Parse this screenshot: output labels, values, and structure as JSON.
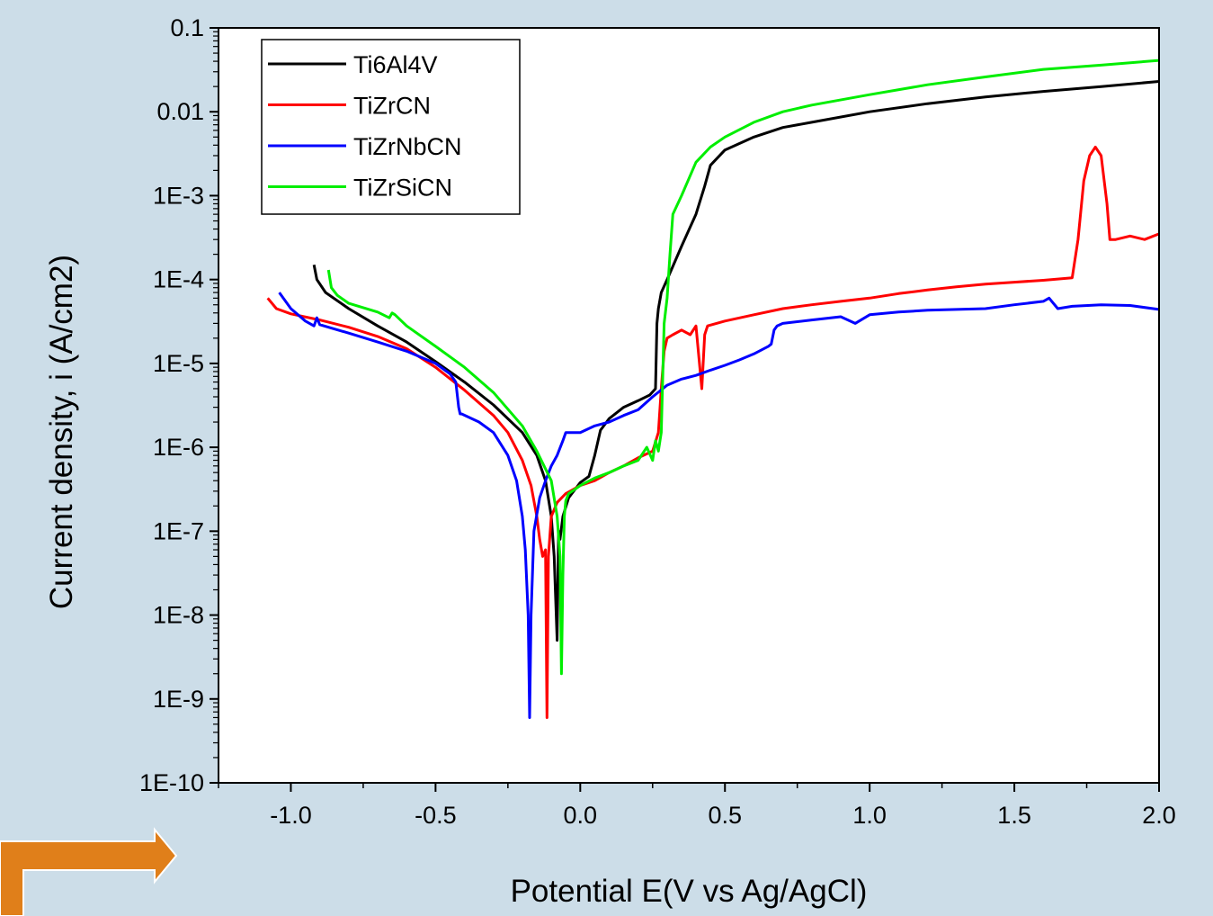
{
  "colors": {
    "background": "#ccdde8",
    "plot_background": "#ffffff",
    "arrow": "#e07f1a"
  },
  "decoration": {
    "arrow_icon": "bent-arrow-right-icon"
  },
  "chart_data": {
    "type": "line",
    "title": "",
    "xlabel": "Potential E(V vs Ag/AgCl)",
    "ylabel": "Current density, i (A/cm2)",
    "xlim": [
      -1.25,
      2.0
    ],
    "ylim": [
      1e-10,
      0.1
    ],
    "yscale": "log",
    "grid": false,
    "legend_position": "top-left",
    "x_ticks": [
      {
        "value": -1.0,
        "label": "-1.0"
      },
      {
        "value": -0.5,
        "label": "-0.5"
      },
      {
        "value": 0.0,
        "label": "0.0"
      },
      {
        "value": 0.5,
        "label": "0.5"
      },
      {
        "value": 1.0,
        "label": "1.0"
      },
      {
        "value": 1.5,
        "label": "1.5"
      },
      {
        "value": 2.0,
        "label": "2.0"
      }
    ],
    "y_ticks": [
      {
        "value": 1e-10,
        "label": "1E-10"
      },
      {
        "value": 1e-09,
        "label": "1E-9"
      },
      {
        "value": 1e-08,
        "label": "1E-8"
      },
      {
        "value": 1e-07,
        "label": "1E-7"
      },
      {
        "value": 1e-06,
        "label": "1E-6"
      },
      {
        "value": 1e-05,
        "label": "1E-5"
      },
      {
        "value": 0.0001,
        "label": "1E-4"
      },
      {
        "value": 0.001,
        "label": "1E-3"
      },
      {
        "value": 0.01,
        "label": "0.01"
      },
      {
        "value": 0.1,
        "label": "0.1"
      }
    ],
    "series": [
      {
        "name": "Ti6Al4V",
        "color": "#000000",
        "x": [
          -0.92,
          -0.91,
          -0.88,
          -0.8,
          -0.7,
          -0.6,
          -0.5,
          -0.4,
          -0.3,
          -0.2,
          -0.15,
          -0.12,
          -0.1,
          -0.09,
          -0.08,
          -0.075,
          -0.07,
          -0.06,
          -0.04,
          0.0,
          0.03,
          0.05,
          0.07,
          0.1,
          0.15,
          0.2,
          0.24,
          0.26,
          0.265,
          0.27,
          0.28,
          0.3,
          0.35,
          0.4,
          0.43,
          0.45,
          0.5,
          0.6,
          0.7,
          0.8,
          1.0,
          1.2,
          1.4,
          1.6,
          1.8,
          2.0
        ],
        "y": [
          0.00015,
          0.0001,
          7e-05,
          4.5e-05,
          2.8e-05,
          1.8e-05,
          1.05e-05,
          6e-06,
          3.2e-06,
          1.5e-06,
          8e-07,
          4e-07,
          1.5e-07,
          5e-08,
          5e-09,
          1e-07,
          8e-08,
          1.5e-07,
          2.5e-07,
          3.8e-07,
          4.5e-07,
          8e-07,
          1.6e-06,
          2.2e-06,
          3e-06,
          3.6e-06,
          4.2e-06,
          5e-06,
          3e-05,
          4.5e-05,
          7e-05,
          0.0001,
          0.00025,
          0.0006,
          0.0013,
          0.0023,
          0.0035,
          0.005,
          0.0065,
          0.0075,
          0.01,
          0.0125,
          0.015,
          0.0175,
          0.02,
          0.023
        ]
      },
      {
        "name": "TiZrCN",
        "color": "#ff0000",
        "x": [
          -1.08,
          -1.05,
          -1.0,
          -0.9,
          -0.8,
          -0.7,
          -0.6,
          -0.5,
          -0.4,
          -0.3,
          -0.25,
          -0.2,
          -0.17,
          -0.15,
          -0.14,
          -0.13,
          -0.12,
          -0.115,
          -0.11,
          -0.1,
          -0.09,
          -0.08,
          -0.05,
          0.0,
          0.05,
          0.1,
          0.15,
          0.2,
          0.25,
          0.27,
          0.28,
          0.29,
          0.3,
          0.32,
          0.35,
          0.38,
          0.4,
          0.42,
          0.43,
          0.44,
          0.5,
          0.6,
          0.7,
          0.8,
          0.9,
          1.0,
          1.1,
          1.2,
          1.3,
          1.4,
          1.5,
          1.6,
          1.7,
          1.72,
          1.74,
          1.76,
          1.78,
          1.8,
          1.82,
          1.83,
          1.85,
          1.9,
          1.95,
          2.0
        ],
        "y": [
          6e-05,
          4.5e-05,
          3.9e-05,
          3.3e-05,
          2.7e-05,
          2.1e-05,
          1.5e-05,
          9e-06,
          4.8e-06,
          2.4e-06,
          1.5e-06,
          7e-07,
          3.5e-07,
          1.5e-07,
          8e-08,
          5e-08,
          6e-08,
          6e-10,
          5e-08,
          1.5e-07,
          1.8e-07,
          2.2e-07,
          2.8e-07,
          3.5e-07,
          4e-07,
          5e-07,
          6e-07,
          7.5e-07,
          9e-07,
          1.5e-06,
          5e-06,
          1.4e-05,
          2e-05,
          2.2e-05,
          2.5e-05,
          2.2e-05,
          2.8e-05,
          5e-06,
          2.2e-05,
          2.8e-05,
          3.2e-05,
          3.8e-05,
          4.5e-05,
          5e-05,
          5.5e-05,
          6e-05,
          6.8e-05,
          7.5e-05,
          8.2e-05,
          8.8e-05,
          9.3e-05,
          9.8e-05,
          0.000105,
          0.0003,
          0.0015,
          0.003,
          0.0038,
          0.003,
          0.0008,
          0.0003,
          0.0003,
          0.00033,
          0.0003,
          0.00035
        ]
      },
      {
        "name": "TiZrNbCN",
        "color": "#0000ff",
        "x": [
          -1.04,
          -1.0,
          -0.95,
          -0.92,
          -0.91,
          -0.9,
          -0.8,
          -0.7,
          -0.6,
          -0.5,
          -0.45,
          -0.43,
          -0.42,
          -0.415,
          -0.41,
          -0.35,
          -0.3,
          -0.25,
          -0.22,
          -0.2,
          -0.19,
          -0.18,
          -0.175,
          -0.17,
          -0.16,
          -0.14,
          -0.12,
          -0.1,
          -0.08,
          -0.06,
          -0.05,
          0.0,
          0.05,
          0.1,
          0.15,
          0.2,
          0.25,
          0.3,
          0.35,
          0.4,
          0.45,
          0.5,
          0.55,
          0.6,
          0.65,
          0.66,
          0.67,
          0.68,
          0.7,
          0.8,
          0.9,
          0.95,
          1.0,
          1.1,
          1.2,
          1.3,
          1.4,
          1.5,
          1.6,
          1.62,
          1.65,
          1.7,
          1.8,
          1.9,
          2.0
        ],
        "y": [
          7e-05,
          4.5e-05,
          3.2e-05,
          2.8e-05,
          3.5e-05,
          2.9e-05,
          2.3e-05,
          1.8e-05,
          1.4e-05,
          1e-05,
          7.5e-06,
          6e-06,
          3e-06,
          2.5e-06,
          2.5e-06,
          2e-06,
          1.5e-06,
          8e-07,
          4e-07,
          1.5e-07,
          6e-08,
          1e-08,
          6e-10,
          1e-08,
          1e-07,
          2.5e-07,
          4e-07,
          6e-07,
          8e-07,
          1.2e-06,
          1.5e-06,
          1.5e-06,
          1.8e-06,
          2e-06,
          2.4e-06,
          2.8e-06,
          4e-06,
          5.5e-06,
          6.5e-06,
          7.2e-06,
          8.3e-06,
          9.5e-06,
          1.1e-05,
          1.3e-05,
          1.6e-05,
          1.7e-05,
          2.5e-05,
          2.8e-05,
          3e-05,
          3.3e-05,
          3.6e-05,
          3e-05,
          3.8e-05,
          4.1e-05,
          4.3e-05,
          4.4e-05,
          4.5e-05,
          5e-05,
          5.5e-05,
          6e-05,
          4.5e-05,
          4.8e-05,
          5e-05,
          4.9e-05,
          4.4e-05
        ]
      },
      {
        "name": "TiZrSiCN",
        "color": "#00ee00",
        "x": [
          -0.87,
          -0.86,
          -0.84,
          -0.8,
          -0.7,
          -0.66,
          -0.65,
          -0.64,
          -0.6,
          -0.5,
          -0.4,
          -0.3,
          -0.2,
          -0.15,
          -0.1,
          -0.08,
          -0.07,
          -0.065,
          -0.06,
          -0.055,
          -0.05,
          -0.04,
          0.0,
          0.05,
          0.1,
          0.15,
          0.2,
          0.23,
          0.25,
          0.26,
          0.27,
          0.28,
          0.29,
          0.3,
          0.31,
          0.32,
          0.35,
          0.4,
          0.45,
          0.5,
          0.6,
          0.7,
          0.8,
          1.0,
          1.2,
          1.4,
          1.6,
          1.8,
          2.0
        ],
        "y": [
          0.00013,
          8e-05,
          6.5e-05,
          5.2e-05,
          4.1e-05,
          3.5e-05,
          4e-05,
          3.8e-05,
          2.8e-05,
          1.6e-05,
          9e-06,
          4.5e-06,
          1.8e-06,
          9e-07,
          4e-07,
          1.5e-07,
          5e-08,
          2e-09,
          3e-08,
          1.5e-07,
          2.3e-07,
          2.8e-07,
          3.5e-07,
          4.3e-07,
          5e-07,
          6e-07,
          7e-07,
          1e-06,
          7e-07,
          1.2e-06,
          9e-07,
          1.5e-06,
          3e-05,
          6e-05,
          0.0002,
          0.0006,
          0.001,
          0.0025,
          0.0038,
          0.005,
          0.0075,
          0.01,
          0.012,
          0.016,
          0.021,
          0.026,
          0.032,
          0.036,
          0.041
        ]
      }
    ]
  }
}
